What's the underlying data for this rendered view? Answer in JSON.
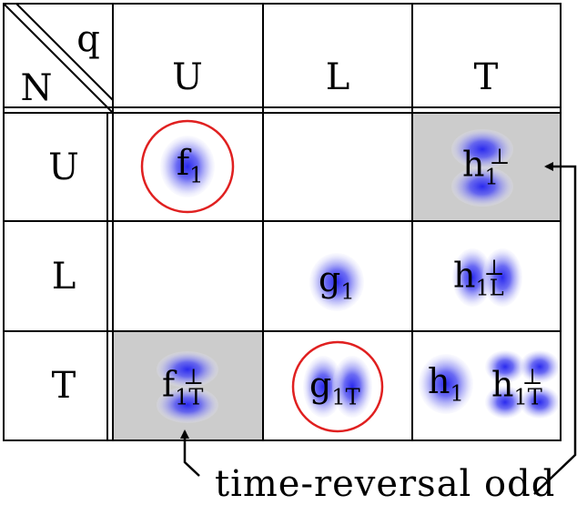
{
  "corner": {
    "quark_label": "q",
    "nucleon_label": "N"
  },
  "columns": [
    "U",
    "L",
    "T"
  ],
  "rows": [
    "U",
    "L",
    "T"
  ],
  "functions": {
    "f1": {
      "base": "f",
      "sub": "1"
    },
    "h1perp": {
      "base": "h",
      "sub": "1",
      "sup": "⊥"
    },
    "g1": {
      "base": "g",
      "sub": "1"
    },
    "h1Lperp": {
      "base": "h",
      "sub": "1L",
      "sup": "⊥"
    },
    "f1Tperp": {
      "base": "f",
      "sub": "1T",
      "sup": "⊥"
    },
    "g1T": {
      "base": "g",
      "sub": "1T"
    },
    "h1": {
      "base": "h",
      "sub": "1"
    },
    "h1Tperp": {
      "base": "h",
      "sub": "1T",
      "sup": "⊥"
    }
  },
  "footer": "time-reversal odd",
  "colors": {
    "blob": "#3a3af0",
    "circle": "#e02020",
    "shade": "#cccccc",
    "grid": "#000000"
  }
}
